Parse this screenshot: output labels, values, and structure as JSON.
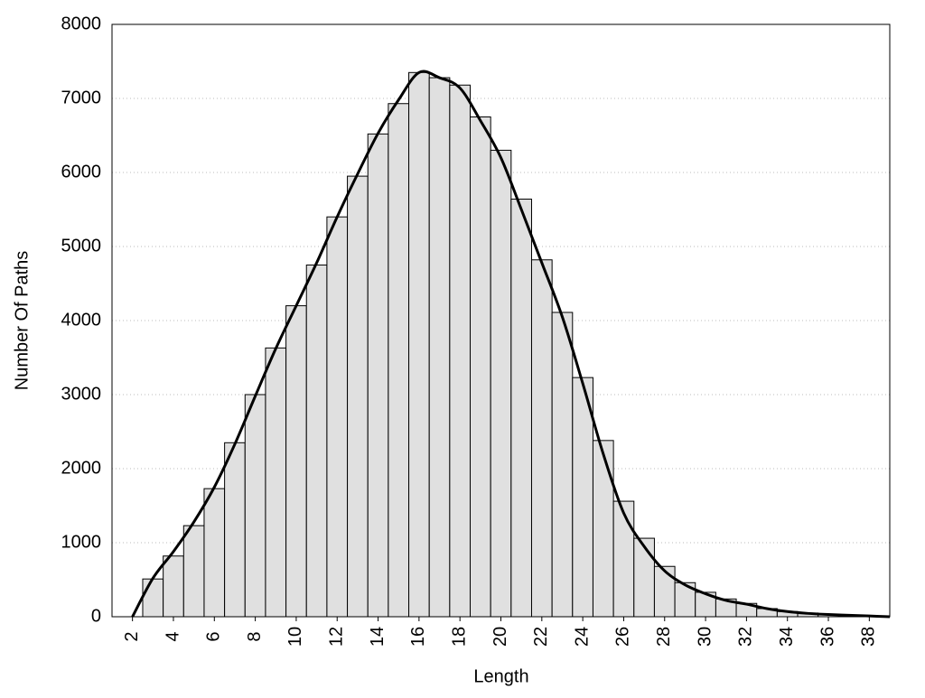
{
  "chart_data": {
    "type": "histogram",
    "xlabel": "Length",
    "ylabel": "Number Of Paths",
    "bins": [
      2.5,
      3.5,
      4.5,
      5.5,
      6.5,
      7.5,
      8.5,
      9.5,
      10.5,
      11.5,
      12.5,
      13.5,
      14.5,
      15.5,
      16.5,
      17.5,
      18.5,
      19.5,
      20.5,
      21.5,
      22.5,
      23.5,
      24.5,
      25.5,
      26.5,
      27.5,
      28.5,
      29.5,
      30.5,
      31.5,
      32.5,
      33.5,
      34.5,
      35.5,
      36.5,
      37.5,
      38.5
    ],
    "counts": [
      510,
      820,
      1230,
      1730,
      2350,
      3000,
      3630,
      4200,
      4750,
      5400,
      5950,
      6520,
      6930,
      7350,
      7280,
      7180,
      6750,
      6300,
      5640,
      4820,
      4110,
      3230,
      2380,
      1560,
      1060,
      680,
      460,
      330,
      240,
      180,
      110,
      70,
      50,
      30,
      20,
      10
    ],
    "color": "#e0e0e0",
    "curve": {
      "color": "#000000",
      "x": [
        2,
        3,
        4,
        5,
        6,
        7,
        8,
        9,
        10,
        11,
        12,
        13,
        14,
        15,
        16,
        17,
        18,
        19,
        20,
        21,
        22,
        23,
        24,
        25,
        26,
        27,
        28,
        29,
        30,
        31,
        32,
        33,
        34,
        35,
        36,
        37,
        38,
        39
      ],
      "values": [
        0,
        520,
        880,
        1280,
        1750,
        2330,
        2980,
        3620,
        4200,
        4780,
        5400,
        5980,
        6530,
        6980,
        7350,
        7280,
        7140,
        6700,
        6200,
        5500,
        4780,
        4050,
        3150,
        2200,
        1400,
        950,
        620,
        430,
        310,
        220,
        170,
        110,
        70,
        45,
        30,
        20,
        10,
        0
      ]
    },
    "xlim": [
      1,
      39
    ],
    "ylim": [
      0,
      8000
    ],
    "xticks": [
      2,
      4,
      6,
      8,
      10,
      12,
      14,
      16,
      18,
      20,
      22,
      24,
      26,
      28,
      30,
      32,
      34,
      36,
      38
    ],
    "yticks": [
      0,
      1000,
      2000,
      3000,
      4000,
      5000,
      6000,
      7000,
      8000
    ],
    "grid": true
  }
}
